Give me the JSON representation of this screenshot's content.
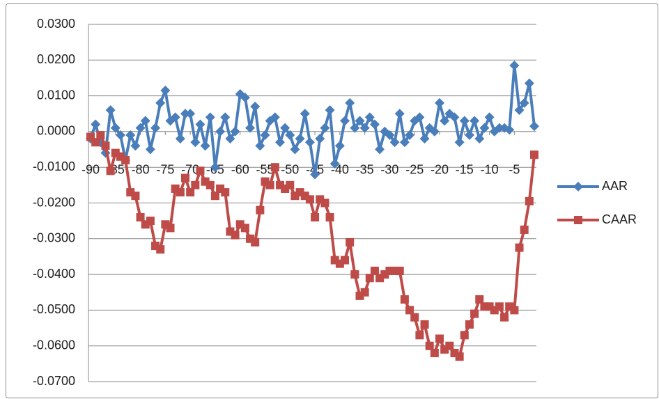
{
  "chart_data": {
    "type": "line",
    "categories": [
      "-90",
      null,
      null,
      null,
      null,
      "-85",
      null,
      null,
      null,
      null,
      "-80",
      null,
      null,
      null,
      null,
      "-75",
      null,
      null,
      null,
      null,
      "-70",
      null,
      null,
      null,
      null,
      "-65",
      null,
      null,
      null,
      null,
      "-60",
      null,
      null,
      null,
      null,
      "-55",
      null,
      null,
      null,
      null,
      "-50",
      null,
      null,
      null,
      null,
      "-45",
      null,
      null,
      null,
      null,
      "-40",
      null,
      null,
      null,
      null,
      "-35",
      null,
      null,
      null,
      null,
      "-30",
      null,
      null,
      null,
      null,
      "-25",
      null,
      null,
      null,
      null,
      "-20",
      null,
      null,
      null,
      null,
      "-15",
      null,
      null,
      null,
      null,
      "-10",
      null,
      null,
      null,
      null,
      "-5",
      null,
      null,
      null,
      null
    ],
    "series": [
      {
        "name": "AAR",
        "color": "#4a7ebb",
        "marker": "diamond",
        "values": [
          -0.002,
          0.002,
          -0.003,
          -0.006,
          0.006,
          0.001,
          -0.001,
          -0.008,
          -0.001,
          -0.004,
          0.001,
          0.003,
          -0.005,
          0.001,
          0.008,
          0.0115,
          0.003,
          0.004,
          -0.002,
          0.005,
          0.005,
          -0.003,
          0.002,
          -0.004,
          0.004,
          -0.01,
          0,
          0.004,
          -0.002,
          0,
          0.0105,
          0.0095,
          0.001,
          0.007,
          -0.004,
          -0.001,
          0.003,
          0.004,
          -0.003,
          0.001,
          -0.001,
          -0.005,
          -0.002,
          0.005,
          -0.003,
          -0.012,
          -0.002,
          0.001,
          0.006,
          -0.009,
          -0.004,
          0.003,
          0.008,
          0.001,
          0.003,
          0.001,
          0.004,
          0.002,
          -0.005,
          0,
          -0.001,
          -0.003,
          0.005,
          -0.003,
          -0.001,
          0.003,
          0.004,
          -0.002,
          0.001,
          0,
          0.008,
          0.003,
          0.005,
          0.004,
          -0.003,
          0.003,
          -0.001,
          0.003,
          -0.002,
          0.001,
          0.004,
          0,
          0.001,
          0.001,
          0.0005,
          0.0185,
          0.006,
          0.008,
          0.0135,
          0.0015
        ]
      },
      {
        "name": "CAAR",
        "color": "#be4b48",
        "marker": "square",
        "values": [
          -0.0015,
          -0.003,
          -0.001,
          -0.004,
          -0.011,
          -0.006,
          -0.007,
          -0.008,
          -0.017,
          -0.018,
          -0.024,
          -0.026,
          -0.025,
          -0.032,
          -0.033,
          -0.026,
          -0.027,
          -0.016,
          -0.017,
          -0.013,
          -0.017,
          -0.015,
          -0.011,
          -0.014,
          -0.015,
          -0.018,
          -0.016,
          -0.017,
          -0.028,
          -0.029,
          -0.026,
          -0.027,
          -0.03,
          -0.031,
          -0.022,
          -0.014,
          -0.015,
          -0.01,
          -0.015,
          -0.016,
          -0.015,
          -0.018,
          -0.017,
          -0.018,
          -0.019,
          -0.024,
          -0.019,
          -0.02,
          -0.024,
          -0.036,
          -0.037,
          -0.036,
          -0.031,
          -0.04,
          -0.046,
          -0.045,
          -0.041,
          -0.039,
          -0.041,
          -0.04,
          -0.039,
          -0.039,
          -0.039,
          -0.047,
          -0.05,
          -0.052,
          -0.057,
          -0.054,
          -0.06,
          -0.062,
          -0.058,
          -0.061,
          -0.06,
          -0.062,
          -0.063,
          -0.057,
          -0.054,
          -0.051,
          -0.047,
          -0.049,
          -0.049,
          -0.05,
          -0.049,
          -0.052,
          -0.049,
          -0.05,
          -0.0325,
          -0.0275,
          -0.0195,
          -0.0065
        ]
      }
    ],
    "ylim": [
      -0.07,
      0.03
    ],
    "yticks": [
      {
        "value": 0.03,
        "label": "0.0300"
      },
      {
        "value": 0.02,
        "label": "0.0200"
      },
      {
        "value": 0.01,
        "label": "0.0100"
      },
      {
        "value": 0,
        "label": "0.0000"
      },
      {
        "value": -0.01,
        "label": "-0.0100"
      },
      {
        "value": -0.02,
        "label": "-0.0200"
      },
      {
        "value": -0.03,
        "label": "-0.0300"
      },
      {
        "value": -0.04,
        "label": "-0.0400"
      },
      {
        "value": -0.05,
        "label": "-0.0500"
      },
      {
        "value": -0.06,
        "label": "-0.0600"
      },
      {
        "value": -0.07,
        "label": "-0.0700"
      }
    ],
    "grid": true,
    "legend": "right"
  }
}
